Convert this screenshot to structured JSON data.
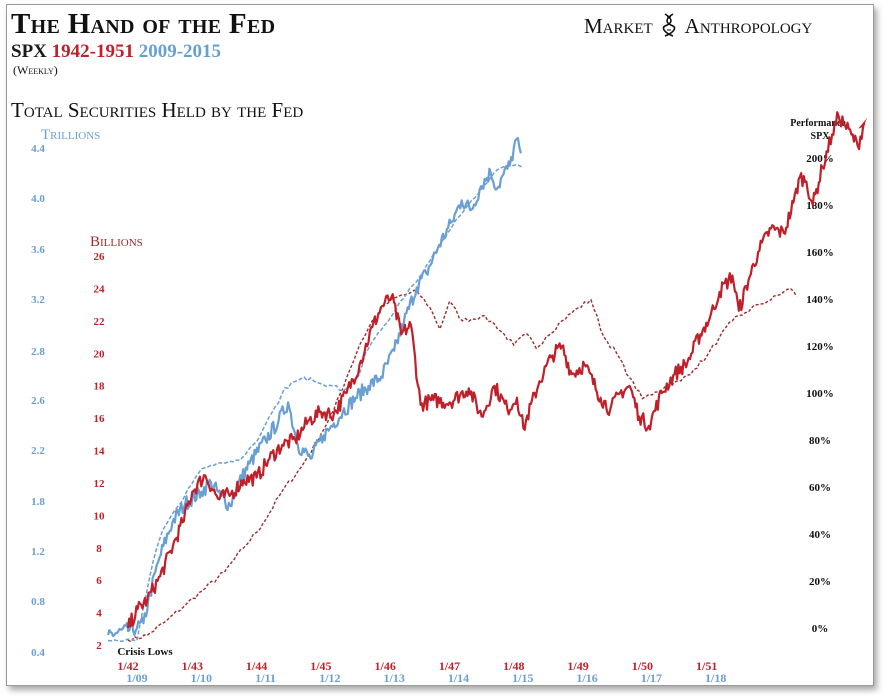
{
  "header": {
    "title": "The Hand of the Fed",
    "subtitle_prefix": "SPX",
    "subtitle_red": "1942-1951",
    "subtitle_blue": "2009-2015",
    "subnote": "(Weekly)",
    "brand_left": "Market",
    "brand_right": "Anthropology",
    "chart_heading": "Total Securities Held by the Fed"
  },
  "colors": {
    "red": "#c0202a",
    "blue": "#6a9fd4",
    "dark_red": "#9e2a2a",
    "black": "#111111"
  },
  "chart_data": {
    "type": "line",
    "title": "Total Securities Held by the Fed",
    "axes": {
      "trillions": {
        "label": "Trillions",
        "ticks": [
          "0.4",
          "0.8",
          "1.2",
          "1.8",
          "2.2",
          "2.6",
          "2.8",
          "3.2",
          "3.6",
          "4.0",
          "4.4"
        ]
      },
      "billions": {
        "label": "Billions",
        "ticks": [
          "2",
          "4",
          "6",
          "8",
          "10",
          "12",
          "14",
          "16",
          "18",
          "20",
          "22",
          "24",
          "26"
        ]
      },
      "performance": {
        "label_top": "Performance",
        "label_bottom": "SPX",
        "ticks": [
          "0%",
          "20%",
          "40%",
          "60%",
          "80%",
          "100%",
          "120%",
          "140%",
          "160%",
          "180%",
          "200%"
        ],
        "range": [
          0,
          200
        ]
      },
      "x_red": [
        "1/42",
        "1/43",
        "1/44",
        "1/45",
        "1/46",
        "1/47",
        "1/48",
        "1/49",
        "1/50",
        "1/51"
      ],
      "x_blue": [
        "1/09",
        "1/10",
        "1/11",
        "1/12",
        "1/13",
        "1/14",
        "1/15",
        "1/16",
        "1/17",
        "1/18"
      ]
    },
    "annotation": "Crisis Lows",
    "grid": false,
    "legend": "none",
    "series": [
      {
        "name": "SPX 1942-1951",
        "color": "#c0202a",
        "style": "solid",
        "x_unit": "years since 1/42",
        "y_unit": "percent",
        "points": [
          [
            0,
            0
          ],
          [
            0.15,
            8
          ],
          [
            0.3,
            12
          ],
          [
            0.5,
            22
          ],
          [
            0.7,
            35
          ],
          [
            0.85,
            45
          ],
          [
            1,
            58
          ],
          [
            1.2,
            65
          ],
          [
            1.4,
            55
          ],
          [
            1.6,
            57
          ],
          [
            1.8,
            63
          ],
          [
            2,
            64
          ],
          [
            2.2,
            72
          ],
          [
            2.4,
            78
          ],
          [
            2.6,
            80
          ],
          [
            2.8,
            88
          ],
          [
            3,
            92
          ],
          [
            3.2,
            91
          ],
          [
            3.4,
            100
          ],
          [
            3.6,
            112
          ],
          [
            3.8,
            128
          ],
          [
            3.95,
            137
          ],
          [
            4.1,
            141
          ],
          [
            4.25,
            125
          ],
          [
            4.4,
            129
          ],
          [
            4.55,
            95
          ],
          [
            4.75,
            97
          ],
          [
            5,
            96
          ],
          [
            5.3,
            102
          ],
          [
            5.5,
            90
          ],
          [
            5.7,
            103
          ],
          [
            5.9,
            93
          ],
          [
            6.05,
            98
          ],
          [
            6.15,
            85
          ],
          [
            6.4,
            105
          ],
          [
            6.6,
            116
          ],
          [
            6.75,
            120
          ],
          [
            6.9,
            108
          ],
          [
            7.1,
            112
          ],
          [
            7.35,
            98
          ],
          [
            7.5,
            93
          ],
          [
            7.65,
            100
          ],
          [
            7.8,
            103
          ],
          [
            7.95,
            90
          ],
          [
            8.1,
            86
          ],
          [
            8.3,
            100
          ],
          [
            8.5,
            108
          ],
          [
            8.7,
            113
          ],
          [
            8.9,
            125
          ],
          [
            9.05,
            132
          ],
          [
            9.2,
            143
          ],
          [
            9.4,
            150
          ],
          [
            9.5,
            135
          ],
          [
            9.65,
            148
          ],
          [
            9.8,
            160
          ],
          [
            10,
            170
          ],
          [
            10.2,
            168
          ],
          [
            10.35,
            181
          ],
          [
            10.45,
            192
          ],
          [
            10.55,
            190
          ],
          [
            10.65,
            180
          ],
          [
            10.8,
            196
          ],
          [
            10.95,
            210
          ],
          [
            11.05,
            218
          ],
          [
            11.15,
            214
          ],
          [
            11.25,
            210
          ],
          [
            11.35,
            205
          ],
          [
            11.45,
            215
          ]
        ]
      },
      {
        "name": "SPX 2009-2015",
        "color": "#6a9fd4",
        "style": "solid",
        "x_unit": "years since 1/09",
        "y_unit": "percent",
        "points": [
          [
            -0.45,
            -3
          ],
          [
            0,
            0
          ],
          [
            0.1,
            2
          ],
          [
            0.2,
            14
          ],
          [
            0.35,
            30
          ],
          [
            0.55,
            45
          ],
          [
            0.75,
            53
          ],
          [
            1,
            58
          ],
          [
            1.15,
            62
          ],
          [
            1.3,
            56
          ],
          [
            1.45,
            52
          ],
          [
            1.55,
            60
          ],
          [
            1.75,
            70
          ],
          [
            2,
            80
          ],
          [
            2.2,
            88
          ],
          [
            2.35,
            96
          ],
          [
            2.5,
            78
          ],
          [
            2.7,
            72
          ],
          [
            2.9,
            82
          ],
          [
            3,
            85
          ],
          [
            3.2,
            92
          ],
          [
            3.4,
            98
          ],
          [
            3.6,
            103
          ],
          [
            3.8,
            107
          ],
          [
            4,
            118
          ],
          [
            4.15,
            130
          ],
          [
            4.35,
            145
          ],
          [
            4.5,
            151
          ],
          [
            4.7,
            163
          ],
          [
            4.9,
            173
          ],
          [
            5.05,
            182
          ],
          [
            5.2,
            178
          ],
          [
            5.35,
            188
          ],
          [
            5.5,
            194
          ],
          [
            5.6,
            187
          ],
          [
            5.7,
            193
          ],
          [
            5.8,
            197
          ],
          [
            5.9,
            208
          ],
          [
            5.97,
            202
          ]
        ]
      },
      {
        "name": "Total Securities Held by the Fed (1942-1951, Billions)",
        "color": "#9e2a2a",
        "style": "dashed",
        "x_unit": "years since 1/42",
        "y_unit": "billions",
        "points": [
          [
            0,
            2.3
          ],
          [
            0.3,
            2.6
          ],
          [
            0.6,
            3.5
          ],
          [
            0.9,
            4.5
          ],
          [
            1.2,
            5.5
          ],
          [
            1.5,
            6.5
          ],
          [
            1.8,
            8
          ],
          [
            2.1,
            9.5
          ],
          [
            2.4,
            11.5
          ],
          [
            2.7,
            13
          ],
          [
            3,
            15
          ],
          [
            3.2,
            16.5
          ],
          [
            3.4,
            18.5
          ],
          [
            3.6,
            20.5
          ],
          [
            3.8,
            22
          ],
          [
            4,
            23
          ],
          [
            4.2,
            23.5
          ],
          [
            4.5,
            23.8
          ],
          [
            4.7,
            22.8
          ],
          [
            4.85,
            21.5
          ],
          [
            5,
            23.2
          ],
          [
            5.2,
            22
          ],
          [
            5.5,
            22.3
          ],
          [
            5.7,
            21.8
          ],
          [
            6,
            20.5
          ],
          [
            6.2,
            21.2
          ],
          [
            6.35,
            20.3
          ],
          [
            6.5,
            21
          ],
          [
            6.75,
            22
          ],
          [
            7,
            22.8
          ],
          [
            7.2,
            23.3
          ],
          [
            7.4,
            21
          ],
          [
            7.6,
            20
          ],
          [
            7.8,
            18.5
          ],
          [
            8,
            17.2
          ],
          [
            8.2,
            17.6
          ],
          [
            8.4,
            18
          ],
          [
            8.6,
            18.3
          ],
          [
            8.8,
            19
          ],
          [
            9,
            19.8
          ],
          [
            9.2,
            21
          ],
          [
            9.4,
            22
          ],
          [
            9.6,
            22.5
          ],
          [
            9.8,
            23
          ],
          [
            10,
            23.3
          ],
          [
            10.2,
            23.8
          ],
          [
            10.3,
            24
          ],
          [
            10.4,
            23.5
          ]
        ]
      },
      {
        "name": "Total Securities Held by the Fed (2009-2015, Trillions)",
        "color": "#6a9fd4",
        "style": "dashed",
        "x_unit": "years since 1/09",
        "y_unit": "trillions",
        "points": [
          [
            -0.45,
            0.49
          ],
          [
            0,
            0.49
          ],
          [
            0.2,
            1
          ],
          [
            0.4,
            1.45
          ],
          [
            0.6,
            1.7
          ],
          [
            0.8,
            1.9
          ],
          [
            1,
            2.05
          ],
          [
            1.3,
            2.1
          ],
          [
            1.6,
            2.12
          ],
          [
            1.9,
            2.3
          ],
          [
            2.1,
            2.5
          ],
          [
            2.3,
            2.65
          ],
          [
            2.5,
            2.68
          ],
          [
            2.7,
            2.69
          ],
          [
            3,
            2.66
          ],
          [
            3.2,
            2.64
          ],
          [
            3.45,
            2.7
          ],
          [
            3.7,
            2.9
          ],
          [
            4,
            3.1
          ],
          [
            4.2,
            3.25
          ],
          [
            4.4,
            3.38
          ],
          [
            4.6,
            3.55
          ],
          [
            4.8,
            3.7
          ],
          [
            5,
            3.85
          ],
          [
            5.2,
            3.98
          ],
          [
            5.4,
            4.1
          ],
          [
            5.55,
            4.2
          ],
          [
            5.7,
            4.25
          ],
          [
            5.85,
            4.26
          ],
          [
            5.98,
            4.25
          ]
        ]
      }
    ]
  }
}
